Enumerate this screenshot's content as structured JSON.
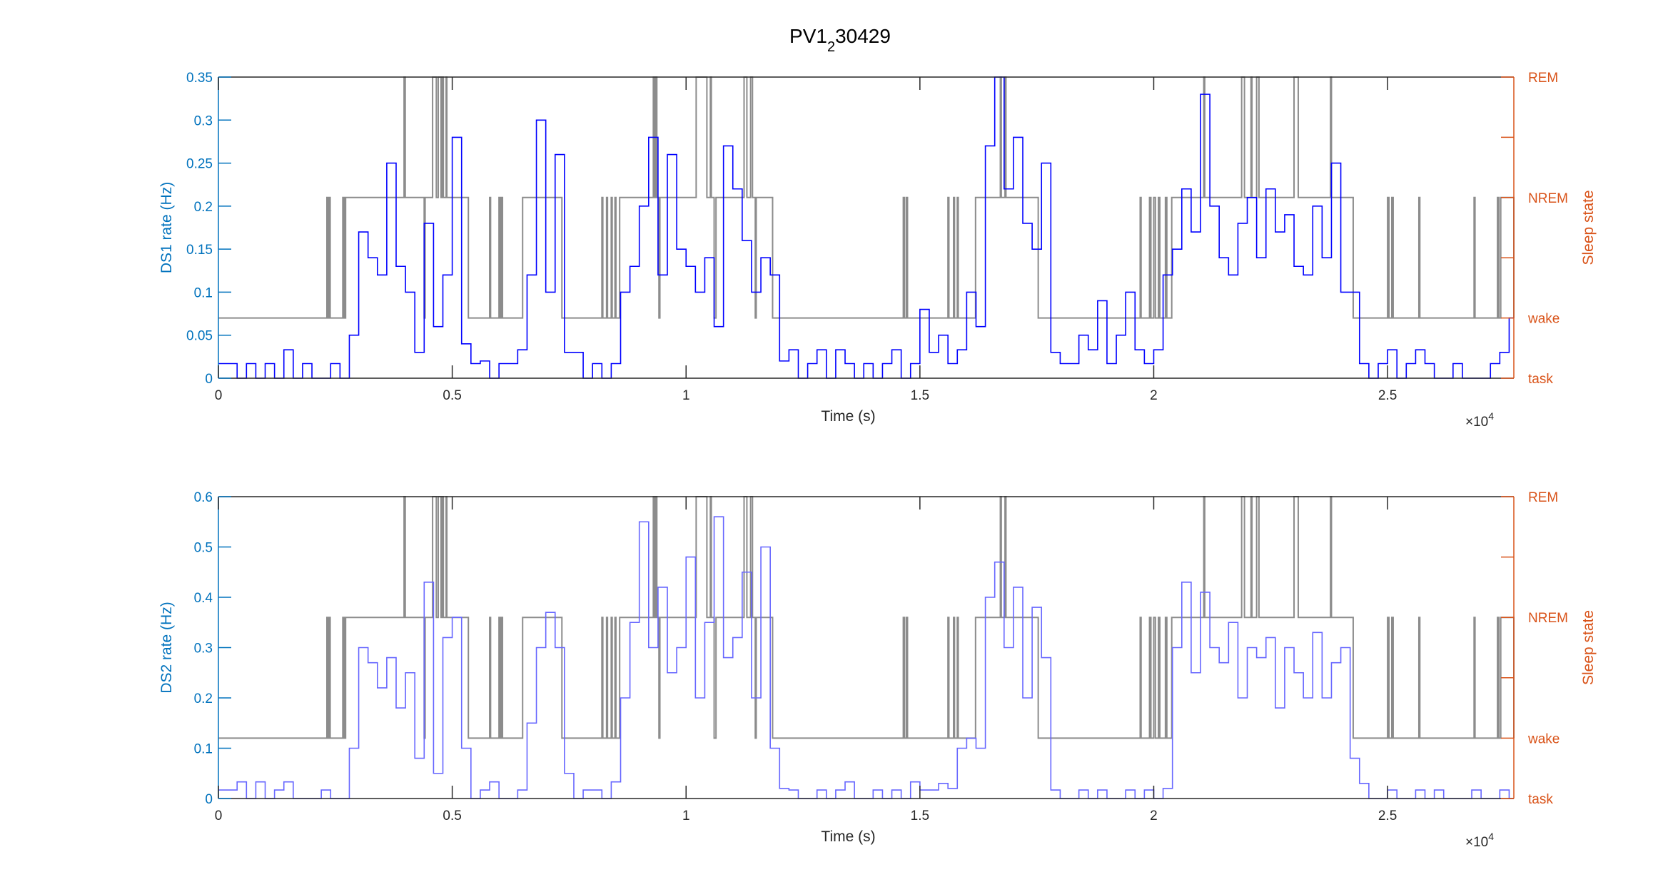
{
  "title": {
    "main": "PV1",
    "sub": "2",
    "rest": "30429"
  },
  "colors": {
    "left_axis": "#0072bd",
    "right_axis": "#d95319",
    "hypnogram": "#8c8c8c",
    "ds1": "#0000ff",
    "ds2": "#6666ff",
    "text": "#262626"
  },
  "chart_data": [
    {
      "type": "line",
      "title": "PV1_2 30429",
      "xlabel": "Time (s)",
      "x_exponent_label": "×10",
      "x_exponent": "4",
      "xlim": [
        0,
        27700
      ],
      "xticks": [
        0,
        5000,
        10000,
        15000,
        20000,
        25000
      ],
      "xtick_labels": [
        "0",
        "0.5",
        "1",
        "1.5",
        "2",
        "2.5"
      ],
      "ylabel": "DS1 rate (Hz)",
      "ylim": [
        0,
        0.35
      ],
      "yticks": [
        0,
        0.05,
        0.1,
        0.15,
        0.2,
        0.25,
        0.3,
        0.35
      ],
      "ytick_labels": [
        "0",
        "0.05",
        "0.1",
        "0.15",
        "0.2",
        "0.25",
        "0.3",
        "0.35"
      ],
      "y2label": "Sleep state",
      "y2lim": [
        0,
        5
      ],
      "y2ticks": [
        0,
        1,
        2,
        3,
        4,
        5
      ],
      "y2tick_labels": [
        {
          "value": 0,
          "label": "task"
        },
        {
          "value": 1,
          "label": "wake"
        },
        {
          "value": 3,
          "label": "NREM"
        },
        {
          "value": 5,
          "label": "REM"
        }
      ],
      "grid": false,
      "bin_seconds": 200,
      "series": [
        {
          "name": "DS1 rate",
          "values": [
            0.017,
            0.017,
            0,
            0.017,
            0,
            0.017,
            0,
            0.033,
            0,
            0.017,
            0,
            0,
            0.017,
            0,
            0.05,
            0.17,
            0.14,
            0.12,
            0.25,
            0.13,
            0.1,
            0.03,
            0.18,
            0.06,
            0.12,
            0.28,
            0.04,
            0.017,
            0.02,
            0,
            0.017,
            0.017,
            0.033,
            0.12,
            0.3,
            0.1,
            0.26,
            0.03,
            0.03,
            0,
            0.017,
            0,
            0.017,
            0.1,
            0.13,
            0.2,
            0.28,
            0.12,
            0.26,
            0.15,
            0.13,
            0.1,
            0.14,
            0.06,
            0.27,
            0.22,
            0.16,
            0.1,
            0.14,
            0.12,
            0.02,
            0.033,
            0,
            0.017,
            0.033,
            0,
            0.033,
            0.017,
            0,
            0.017,
            0,
            0.017,
            0.033,
            0,
            0.017,
            0.08,
            0.03,
            0.05,
            0.017,
            0.033,
            0.1,
            0.06,
            0.27,
            0.35,
            0.22,
            0.28,
            0.18,
            0.15,
            0.25,
            0.03,
            0.017,
            0.017,
            0.05,
            0.033,
            0.09,
            0.017,
            0.05,
            0.1,
            0.033,
            0.017,
            0.033,
            0.12,
            0.15,
            0.22,
            0.17,
            0.33,
            0.2,
            0.14,
            0.12,
            0.18,
            0.21,
            0.14,
            0.22,
            0.17,
            0.19,
            0.13,
            0.12,
            0.2,
            0.14,
            0.25,
            0.1,
            0.1,
            0.017,
            0,
            0.017,
            0.033,
            0,
            0.017,
            0.033,
            0.017,
            0,
            0,
            0.017,
            0,
            0,
            0,
            0.017,
            0.03,
            0.07,
            0.035
          ]
        }
      ]
    },
    {
      "type": "line",
      "xlabel": "Time (s)",
      "x_exponent_label": "×10",
      "x_exponent": "4",
      "xlim": [
        0,
        27700
      ],
      "xticks": [
        0,
        5000,
        10000,
        15000,
        20000,
        25000
      ],
      "xtick_labels": [
        "0",
        "0.5",
        "1",
        "1.5",
        "2",
        "2.5"
      ],
      "ylabel": "DS2 rate (Hz)",
      "ylim": [
        0,
        0.6
      ],
      "yticks": [
        0,
        0.1,
        0.2,
        0.3,
        0.4,
        0.5,
        0.6
      ],
      "ytick_labels": [
        "0",
        "0.1",
        "0.2",
        "0.3",
        "0.4",
        "0.5",
        "0.6"
      ],
      "y2label": "Sleep state",
      "y2lim": [
        0,
        5
      ],
      "y2ticks": [
        0,
        1,
        2,
        3,
        4,
        5
      ],
      "y2tick_labels": [
        {
          "value": 0,
          "label": "task"
        },
        {
          "value": 1,
          "label": "wake"
        },
        {
          "value": 3,
          "label": "NREM"
        },
        {
          "value": 5,
          "label": "REM"
        }
      ],
      "grid": false,
      "bin_seconds": 200,
      "series": [
        {
          "name": "DS2 rate",
          "values": [
            0.017,
            0.017,
            0.033,
            0,
            0.033,
            0,
            0.017,
            0.033,
            0,
            0,
            0,
            0.017,
            0,
            0,
            0.1,
            0.3,
            0.27,
            0.22,
            0.28,
            0.18,
            0.25,
            0.08,
            0.43,
            0.05,
            0.32,
            0.36,
            0.1,
            0,
            0.017,
            0.033,
            0,
            0,
            0.017,
            0.15,
            0.3,
            0.37,
            0.3,
            0.05,
            0,
            0.017,
            0.017,
            0,
            0.033,
            0.2,
            0.35,
            0.55,
            0.3,
            0.42,
            0.25,
            0.3,
            0.48,
            0.2,
            0.35,
            0.56,
            0.28,
            0.32,
            0.45,
            0.2,
            0.5,
            0.1,
            0.02,
            0.017,
            0,
            0,
            0.017,
            0,
            0.017,
            0.033,
            0,
            0,
            0.017,
            0,
            0.017,
            0,
            0.033,
            0.017,
            0.017,
            0.03,
            0.02,
            0.1,
            0.12,
            0.1,
            0.4,
            0.47,
            0.3,
            0.42,
            0.2,
            0.38,
            0.28,
            0.017,
            0,
            0,
            0.017,
            0,
            0.017,
            0,
            0,
            0.017,
            0,
            0.017,
            0,
            0.02,
            0.3,
            0.43,
            0.25,
            0.41,
            0.3,
            0.27,
            0.35,
            0.2,
            0.3,
            0.28,
            0.32,
            0.18,
            0.3,
            0.25,
            0.2,
            0.33,
            0.2,
            0.27,
            0.3,
            0.08,
            0.03,
            0,
            0,
            0.017,
            0,
            0,
            0.017,
            0,
            0.017,
            0,
            0,
            0,
            0.017,
            0,
            0,
            0.017,
            0,
            0
          ]
        }
      ]
    }
  ],
  "hypnogram": {
    "state_values": {
      "task": 0,
      "wake": 1,
      "NREM": 3,
      "REM": 5
    },
    "segments": [
      [
        0,
        "wake"
      ],
      [
        2320,
        "NREM"
      ],
      [
        2350,
        "wake"
      ],
      [
        2370,
        "NREM"
      ],
      [
        2390,
        "wake"
      ],
      [
        2660,
        "NREM"
      ],
      [
        2690,
        "wake"
      ],
      [
        2720,
        "NREM"
      ],
      [
        3970,
        "REM"
      ],
      [
        3995,
        "NREM"
      ],
      [
        4400,
        "wake"
      ],
      [
        4420,
        "NREM"
      ],
      [
        4580,
        "REM"
      ],
      [
        4660,
        "NREM"
      ],
      [
        4700,
        "REM"
      ],
      [
        4760,
        "NREM"
      ],
      [
        4790,
        "REM"
      ],
      [
        4810,
        "NREM"
      ],
      [
        4870,
        "REM"
      ],
      [
        4885,
        "NREM"
      ],
      [
        5345,
        "wake"
      ],
      [
        5800,
        "NREM"
      ],
      [
        5820,
        "wake"
      ],
      [
        6000,
        "NREM"
      ],
      [
        6030,
        "wake"
      ],
      [
        6060,
        "NREM"
      ],
      [
        6075,
        "wake"
      ],
      [
        6505,
        "NREM"
      ],
      [
        7345,
        "wake"
      ],
      [
        8200,
        "NREM"
      ],
      [
        8220,
        "wake"
      ],
      [
        8300,
        "NREM"
      ],
      [
        8320,
        "wake"
      ],
      [
        8400,
        "NREM"
      ],
      [
        8420,
        "wake"
      ],
      [
        8480,
        "NREM"
      ],
      [
        8500,
        "wake"
      ],
      [
        8580,
        "NREM"
      ],
      [
        9300,
        "REM"
      ],
      [
        9330,
        "NREM"
      ],
      [
        9350,
        "REM"
      ],
      [
        9375,
        "NREM"
      ],
      [
        9420,
        "wake"
      ],
      [
        9440,
        "NREM"
      ],
      [
        10216,
        "REM"
      ],
      [
        10445,
        "NREM"
      ],
      [
        10520,
        "REM"
      ],
      [
        10540,
        "NREM"
      ],
      [
        10600,
        "wake"
      ],
      [
        10640,
        "NREM"
      ],
      [
        11240,
        "REM"
      ],
      [
        11300,
        "NREM"
      ],
      [
        11380,
        "REM"
      ],
      [
        11420,
        "NREM"
      ],
      [
        11480,
        "wake"
      ],
      [
        11500,
        "NREM"
      ],
      [
        11850,
        "wake"
      ],
      [
        14645,
        "NREM"
      ],
      [
        14670,
        "wake"
      ],
      [
        14710,
        "NREM"
      ],
      [
        14735,
        "wake"
      ],
      [
        15600,
        "NREM"
      ],
      [
        15620,
        "wake"
      ],
      [
        15720,
        "NREM"
      ],
      [
        15740,
        "wake"
      ],
      [
        15800,
        "NREM"
      ],
      [
        15820,
        "wake"
      ],
      [
        16190,
        "NREM"
      ],
      [
        16720,
        "REM"
      ],
      [
        16740,
        "NREM"
      ],
      [
        16820,
        "REM"
      ],
      [
        16840,
        "NREM"
      ],
      [
        17530,
        "wake"
      ],
      [
        19710,
        "NREM"
      ],
      [
        19730,
        "wake"
      ],
      [
        19910,
        "NREM"
      ],
      [
        19940,
        "wake"
      ],
      [
        20000,
        "NREM"
      ],
      [
        20035,
        "wake"
      ],
      [
        20100,
        "NREM"
      ],
      [
        20130,
        "wake"
      ],
      [
        20250,
        "NREM"
      ],
      [
        20280,
        "wake"
      ],
      [
        20385,
        "NREM"
      ],
      [
        21070,
        "REM"
      ],
      [
        21090,
        "NREM"
      ],
      [
        21880,
        "REM"
      ],
      [
        21940,
        "NREM"
      ],
      [
        22080,
        "REM"
      ],
      [
        22100,
        "NREM"
      ],
      [
        22200,
        "REM"
      ],
      [
        22250,
        "NREM"
      ],
      [
        23000,
        "REM"
      ],
      [
        23090,
        "NREM"
      ],
      [
        23780,
        "REM"
      ],
      [
        23800,
        "NREM"
      ],
      [
        24265,
        "wake"
      ],
      [
        25000,
        "NREM"
      ],
      [
        25030,
        "wake"
      ],
      [
        25090,
        "NREM"
      ],
      [
        25120,
        "wake"
      ],
      [
        25670,
        "NREM"
      ],
      [
        25690,
        "wake"
      ],
      [
        26850,
        "NREM"
      ],
      [
        26870,
        "wake"
      ],
      [
        27350,
        "NREM"
      ],
      [
        27380,
        "wake"
      ],
      [
        27420,
        "NREM"
      ],
      [
        27700,
        "wake"
      ]
    ]
  }
}
